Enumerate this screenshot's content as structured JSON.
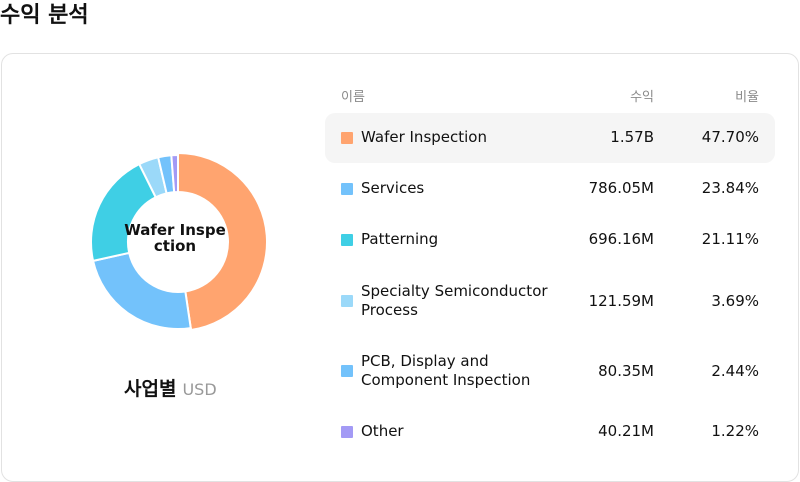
{
  "page_title": "수익 분석",
  "center_label": "Wafer Inspection",
  "caption": {
    "label": "사업별",
    "unit": "USD"
  },
  "table_headers": {
    "name": "이름",
    "value": "수익",
    "share": "비율"
  },
  "rows": [
    {
      "name": "Wafer Inspection",
      "value_text": "1.57B",
      "share_text": "47.70%",
      "color": "#ffa46f",
      "active": true
    },
    {
      "name": "Services",
      "value_text": "786.05M",
      "share_text": "23.84%",
      "color": "#73c2fb"
    },
    {
      "name": "Patterning",
      "value_text": "696.16M",
      "share_text": "21.11%",
      "color": "#3fcfe5"
    },
    {
      "name": "Specialty Semiconductor Process",
      "value_text": "121.59M",
      "share_text": "3.69%",
      "color": "#9bd9f9"
    },
    {
      "name": "PCB, Display and Component Inspection",
      "value_text": "80.35M",
      "share_text": "2.44%",
      "color": "#73c2fb"
    },
    {
      "name": "Other",
      "value_text": "40.21M",
      "share_text": "1.22%",
      "color": "#a39af5"
    }
  ],
  "chart_data": {
    "type": "pie",
    "variant": "donut",
    "unit": "USD",
    "categories": [
      "Wafer Inspection",
      "Services",
      "Patterning",
      "Specialty Semiconductor Process",
      "PCB, Display and Component Inspection",
      "Other"
    ],
    "values": [
      1570000000,
      786050000,
      696160000,
      121590000,
      80350000,
      40210000
    ],
    "shares": [
      47.7,
      23.84,
      21.11,
      3.69,
      2.44,
      1.22
    ],
    "colors": [
      "#ffa46f",
      "#73c2fb",
      "#3fcfe5",
      "#9bd9f9",
      "#73c2fb",
      "#a39af5"
    ],
    "highlighted": "Wafer Inspection"
  }
}
